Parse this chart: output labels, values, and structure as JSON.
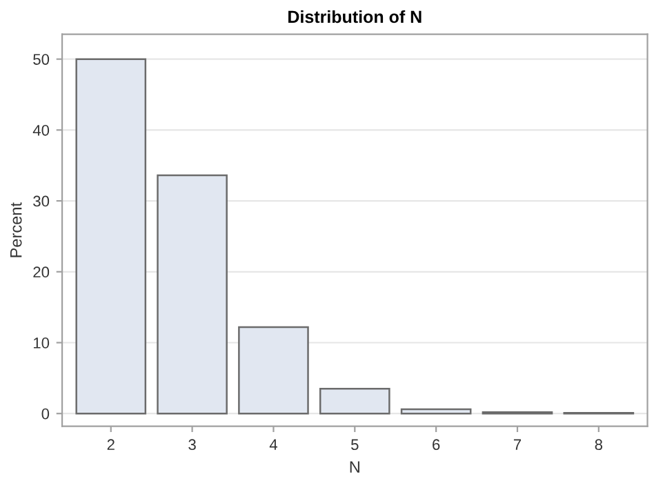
{
  "chart_data": {
    "type": "bar",
    "title": "Distribution of N",
    "xlabel": "N",
    "ylabel": "Percent",
    "categories": [
      "2",
      "3",
      "4",
      "5",
      "6",
      "7",
      "8"
    ],
    "values": [
      50,
      33.6,
      12.2,
      3.5,
      0.6,
      0.2,
      0.1
    ],
    "color": "#e1e7f1",
    "ylim": [
      -1.8,
      53.5
    ],
    "yticks": [
      0,
      10,
      20,
      30,
      40,
      50
    ],
    "grid": "y"
  }
}
